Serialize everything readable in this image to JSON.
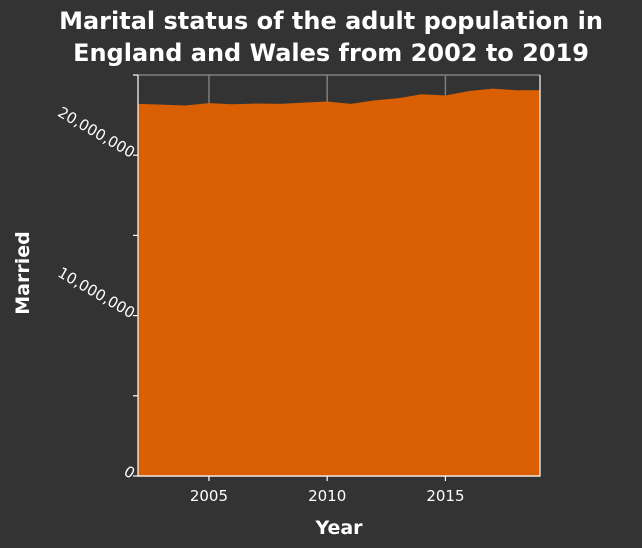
{
  "chart_data": {
    "type": "area",
    "title_lines": [
      "Marital status of the adult population in",
      "England and Wales from 2002 to 2019"
    ],
    "xlabel": "Year",
    "ylabel": "Married",
    "xlim": [
      2002,
      2019
    ],
    "ylim": [
      0,
      25000000
    ],
    "x_ticks": [
      2005,
      2010,
      2015
    ],
    "x_tick_labels": [
      "2005",
      "2010",
      "2015"
    ],
    "y_ticks": [
      0,
      5000000,
      10000000,
      15000000,
      20000000,
      25000000
    ],
    "y_tick_labels": [
      "0",
      "",
      "10,000,000",
      "",
      "20,000,000",
      ""
    ],
    "grid": true,
    "x": [
      2002,
      2003,
      2004,
      2005,
      2006,
      2007,
      2008,
      2009,
      2010,
      2011,
      2012,
      2013,
      2014,
      2015,
      2016,
      2017,
      2018,
      2019
    ],
    "series": [
      {
        "values": [
          23200000,
          23150000,
          23100000,
          23250000,
          23180000,
          23220000,
          23200000,
          23280000,
          23350000,
          23200000,
          23420000,
          23550000,
          23800000,
          23720000,
          24000000,
          24150000,
          24050000,
          24050000
        ]
      }
    ],
    "colors": {
      "background": "#333333",
      "plot_background": "#333333",
      "area_fill": "#d95f02",
      "grid": "#7f7f7f",
      "axis": "#ffffff",
      "text": "#ffffff"
    }
  }
}
